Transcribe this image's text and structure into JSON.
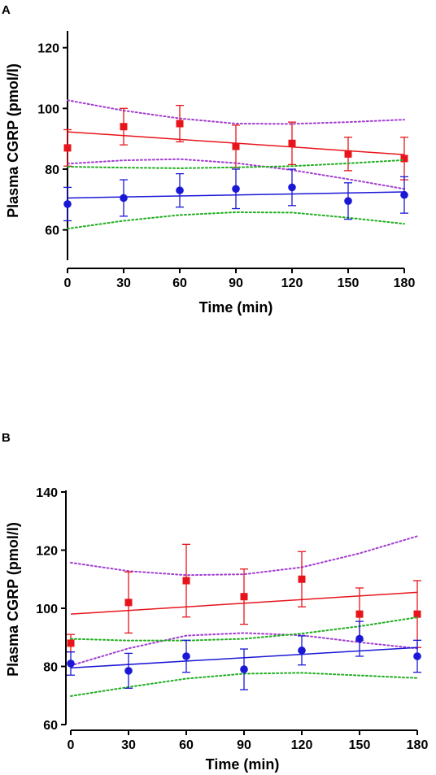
{
  "chart_data": [
    {
      "panel": "A",
      "type": "scatter",
      "xlabel": "Time (min)",
      "ylabel": "Plasma CGRP (pmol/l)",
      "x": [
        0,
        30,
        60,
        90,
        120,
        150,
        180
      ],
      "xticks": [
        "0",
        "30",
        "60",
        "90",
        "120",
        "150",
        "180"
      ],
      "yticks": [
        "60",
        "80",
        "100",
        "120"
      ],
      "xlim": [
        0,
        180
      ],
      "ylim": [
        50,
        125
      ],
      "grid": false,
      "series": [
        {
          "color": "#e8141b",
          "marker": "square",
          "values": [
            87,
            94,
            95,
            87.5,
            88.5,
            85,
            83.5
          ],
          "error": [
            6,
            6,
            6,
            7,
            7,
            5.5,
            7
          ],
          "fit": [
            92.3,
            84.8
          ],
          "band_color": "#a23ed1",
          "band_upper": [
            102.7,
            99.3,
            96.7,
            95.0,
            94.9,
            95.5,
            96.3
          ],
          "band_lower": [
            81.8,
            82.9,
            83.3,
            82.0,
            79.7,
            76.7,
            73.5
          ]
        },
        {
          "color": "#1a18d6",
          "marker": "circle",
          "values": [
            68.5,
            70.5,
            73,
            73.5,
            74,
            69.5,
            71.5
          ],
          "error": [
            5.5,
            6,
            5.5,
            6.5,
            6,
            6,
            6
          ],
          "fit": [
            70.5,
            72.5
          ],
          "band_color": "#1fae1f",
          "band_upper": [
            80.8,
            80.5,
            80.3,
            80.6,
            81.0,
            81.9,
            83.0
          ],
          "band_lower": [
            60.4,
            63.0,
            64.9,
            65.8,
            65.7,
            64.0,
            62.0
          ]
        }
      ]
    },
    {
      "panel": "B",
      "type": "scatter",
      "xlabel": "Time (min)",
      "ylabel": "Plasma CGRP (pmol/l)",
      "x": [
        0,
        30,
        60,
        90,
        120,
        150,
        180
      ],
      "xticks": [
        "0",
        "30",
        "60",
        "90",
        "120",
        "150",
        "180"
      ],
      "yticks": [
        "60",
        "80",
        "100",
        "120",
        "140"
      ],
      "xlim": [
        0,
        180
      ],
      "ylim": [
        60,
        140
      ],
      "grid": false,
      "series": [
        {
          "color": "#e8141b",
          "marker": "square",
          "values": [
            88,
            102,
            109.5,
            104,
            110,
            98,
            98
          ],
          "error": [
            3,
            10.5,
            12.5,
            9.5,
            9.5,
            9,
            11.5
          ],
          "fit": [
            98,
            105.5
          ],
          "band_color": "#a23ed1",
          "band_upper": [
            115.7,
            112.8,
            111.4,
            111.7,
            114.1,
            118.9,
            124.8
          ],
          "band_lower": [
            80.3,
            86.2,
            90.6,
            91.5,
            90.7,
            88.3,
            86.2
          ]
        },
        {
          "color": "#1a18d6",
          "marker": "circle",
          "values": [
            81,
            78.5,
            83.5,
            79,
            85.5,
            89.5,
            83.5
          ],
          "error": [
            4,
            6,
            5.5,
            7,
            5,
            6,
            5.5
          ],
          "fit": [
            79.5,
            86.5
          ],
          "band_color": "#1fae1f",
          "band_upper": [
            89.5,
            88.9,
            88.9,
            89.5,
            91.3,
            93.8,
            96.9
          ],
          "band_lower": [
            69.8,
            72.9,
            75.8,
            77.5,
            77.8,
            76.9,
            76.0
          ]
        }
      ]
    }
  ]
}
